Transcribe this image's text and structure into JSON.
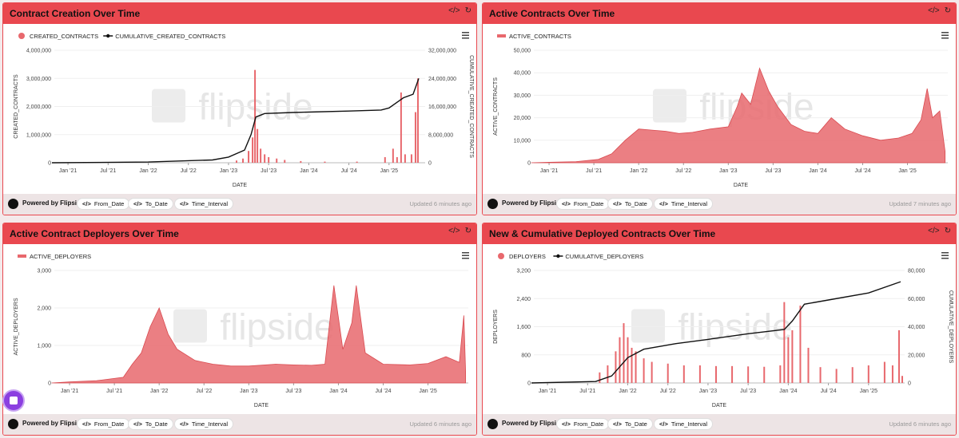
{
  "panels": [
    {
      "title": "Contract Creation Over Time",
      "footer": {
        "powered": "Powered by Flipside",
        "chips": [
          "From_Date",
          "To_Date",
          "Time_Interval"
        ],
        "updated": "Updated 6 minutes ago"
      }
    },
    {
      "title": "Active Contracts Over Time",
      "footer": {
        "powered": "Powered by Flipside",
        "chips": [
          "From_Date",
          "To_Date",
          "Time_Interval"
        ],
        "updated": "Updated 7 minutes ago"
      }
    },
    {
      "title": "Active Contract Deployers Over Time",
      "footer": {
        "powered": "Powered by Flipside",
        "chips": [
          "From_Date",
          "To_Date",
          "Time_Interval"
        ],
        "updated": "Updated 6 minutes ago"
      }
    },
    {
      "title": "New & Cumulative Deployed Contracts Over Time",
      "footer": {
        "powered": "Powered by Flipside",
        "chips": [
          "From_Date",
          "To_Date",
          "Time_Interval"
        ],
        "updated": "Updated 6 minutes ago"
      }
    }
  ],
  "icons": {
    "code": "code-icon",
    "refresh": "refresh-icon",
    "menu": "hamburger-menu-icon"
  },
  "colors": {
    "accent": "#e9484f",
    "series": "#e8686d",
    "line": "#111111"
  },
  "watermark": "flipside",
  "chart_data": [
    {
      "type": "bar",
      "xlabel": "DATE",
      "ylabel": "CREATED_CONTRACTS",
      "y2label": "CUMULATIVE_CREATED_CONTRACTS",
      "ylim": [
        0,
        4000000
      ],
      "y2lim": [
        0,
        32000000
      ],
      "yticks": [
        "0",
        "1,000,000",
        "2,000,000",
        "3,000,000",
        "4,000,000"
      ],
      "y2ticks": [
        "0",
        "8,000,000",
        "16,000,000",
        "24,000,000",
        "32,000,000"
      ],
      "xticks": [
        "Jan '21",
        "Jul '21",
        "Jan '22",
        "Jul '22",
        "Jan '23",
        "Jul '23",
        "Jan '24",
        "Jul '24",
        "Jan '25"
      ],
      "series": [
        {
          "name": "CREATED_CONTRACTS",
          "kind": "bar",
          "points": [
            [
              2023.1,
              80000
            ],
            [
              2023.18,
              150000
            ],
            [
              2023.25,
              420000
            ],
            [
              2023.3,
              900000
            ],
            [
              2023.33,
              3300000
            ],
            [
              2023.36,
              1200000
            ],
            [
              2023.4,
              500000
            ],
            [
              2023.45,
              300000
            ],
            [
              2023.5,
              200000
            ],
            [
              2023.6,
              150000
            ],
            [
              2023.7,
              100000
            ],
            [
              2023.9,
              60000
            ],
            [
              2024.2,
              40000
            ],
            [
              2024.6,
              40000
            ],
            [
              2024.95,
              200000
            ],
            [
              2025.05,
              500000
            ],
            [
              2025.1,
              200000
            ],
            [
              2025.15,
              2500000
            ],
            [
              2025.2,
              300000
            ],
            [
              2025.28,
              300000
            ],
            [
              2025.33,
              1800000
            ],
            [
              2025.36,
              3000000
            ]
          ]
        },
        {
          "name": "CUMULATIVE_CREATED_CONTRACTS",
          "kind": "line",
          "points": [
            [
              2020.8,
              0
            ],
            [
              2022.0,
              200000
            ],
            [
              2022.8,
              800000
            ],
            [
              2023.0,
              1600000
            ],
            [
              2023.2,
              3600000
            ],
            [
              2023.28,
              8000000
            ],
            [
              2023.34,
              13000000
            ],
            [
              2023.45,
              14000000
            ],
            [
              2023.8,
              14300000
            ],
            [
              2024.5,
              14700000
            ],
            [
              2024.9,
              15000000
            ],
            [
              2025.0,
              15600000
            ],
            [
              2025.18,
              18500000
            ],
            [
              2025.3,
              19500000
            ],
            [
              2025.37,
              24000000
            ]
          ]
        }
      ]
    },
    {
      "type": "area",
      "xlabel": "DATE",
      "ylabel": "ACTIVE_CONTRACTS",
      "ylim": [
        0,
        50000
      ],
      "yticks": [
        "0",
        "10,000",
        "20,000",
        "30,000",
        "40,000",
        "50,000"
      ],
      "xticks": [
        "Jan '21",
        "Jul '21",
        "Jan '22",
        "Jul '22",
        "Jan '23",
        "Jul '23",
        "Jan '24",
        "Jul '24",
        "Jan '25"
      ],
      "series": [
        {
          "name": "ACTIVE_CONTRACTS",
          "points": [
            [
              2020.8,
              0
            ],
            [
              2021.0,
              200
            ],
            [
              2021.3,
              500
            ],
            [
              2021.55,
              1500
            ],
            [
              2021.7,
              4000
            ],
            [
              2021.85,
              10000
            ],
            [
              2022.0,
              15000
            ],
            [
              2022.15,
              14500
            ],
            [
              2022.3,
              14000
            ],
            [
              2022.45,
              13000
            ],
            [
              2022.6,
              13500
            ],
            [
              2022.8,
              15000
            ],
            [
              2023.0,
              16000
            ],
            [
              2023.1,
              25000
            ],
            [
              2023.15,
              31000
            ],
            [
              2023.25,
              26000
            ],
            [
              2023.35,
              42000
            ],
            [
              2023.45,
              32000
            ],
            [
              2023.55,
              25000
            ],
            [
              2023.7,
              17000
            ],
            [
              2023.85,
              14000
            ],
            [
              2024.0,
              13000
            ],
            [
              2024.15,
              20000
            ],
            [
              2024.3,
              15000
            ],
            [
              2024.5,
              12000
            ],
            [
              2024.7,
              10000
            ],
            [
              2024.9,
              11000
            ],
            [
              2025.05,
              13000
            ],
            [
              2025.15,
              19000
            ],
            [
              2025.22,
              33000
            ],
            [
              2025.28,
              20000
            ],
            [
              2025.36,
              23000
            ],
            [
              2025.42,
              5000
            ]
          ]
        }
      ]
    },
    {
      "type": "area",
      "xlabel": "DATE",
      "ylabel": "ACTIVE_DEPLOYERS",
      "ylim": [
        0,
        3000
      ],
      "yticks": [
        "0",
        "1,000",
        "2,000",
        "3,000"
      ],
      "xticks": [
        "Jan '21",
        "Jul '21",
        "Jan '22",
        "Jul '22",
        "Jan '23",
        "Jul '23",
        "Jan '24",
        "Jul '24",
        "Jan '25"
      ],
      "series": [
        {
          "name": "ACTIVE_DEPLOYERS",
          "points": [
            [
              2020.8,
              0
            ],
            [
              2021.0,
              30
            ],
            [
              2021.3,
              60
            ],
            [
              2021.6,
              150
            ],
            [
              2021.7,
              500
            ],
            [
              2021.8,
              800
            ],
            [
              2021.9,
              1500
            ],
            [
              2022.0,
              2000
            ],
            [
              2022.1,
              1300
            ],
            [
              2022.2,
              900
            ],
            [
              2022.4,
              600
            ],
            [
              2022.6,
              500
            ],
            [
              2022.8,
              450
            ],
            [
              2023.0,
              450
            ],
            [
              2023.3,
              500
            ],
            [
              2023.5,
              480
            ],
            [
              2023.7,
              470
            ],
            [
              2023.85,
              500
            ],
            [
              2023.95,
              2600
            ],
            [
              2024.05,
              900
            ],
            [
              2024.15,
              1600
            ],
            [
              2024.2,
              2600
            ],
            [
              2024.3,
              800
            ],
            [
              2024.5,
              500
            ],
            [
              2024.8,
              480
            ],
            [
              2025.0,
              520
            ],
            [
              2025.2,
              700
            ],
            [
              2025.35,
              550
            ],
            [
              2025.4,
              1800
            ],
            [
              2025.42,
              300
            ]
          ]
        }
      ]
    },
    {
      "type": "bar",
      "xlabel": "DATE",
      "ylabel": "DEPLOYERS",
      "y2label": "CUMULATIVE_DEPLOYERS",
      "ylim": [
        0,
        3200
      ],
      "y2lim": [
        0,
        80000
      ],
      "yticks": [
        "0",
        "800",
        "1,600",
        "2,400",
        "3,200"
      ],
      "y2ticks": [
        "0",
        "20,000",
        "40,000",
        "60,000",
        "80,000"
      ],
      "xticks": [
        "Jan '21",
        "Jul '21",
        "Jan '22",
        "Jul '22",
        "Jan '23",
        "Jul '23",
        "Jan '24",
        "Jul '24",
        "Jan '25"
      ],
      "series": [
        {
          "name": "DEPLOYERS",
          "kind": "bar",
          "points": [
            [
              2021.65,
              300
            ],
            [
              2021.75,
              500
            ],
            [
              2021.85,
              900
            ],
            [
              2021.9,
              1300
            ],
            [
              2021.95,
              1700
            ],
            [
              2022.0,
              1300
            ],
            [
              2022.05,
              1000
            ],
            [
              2022.1,
              900
            ],
            [
              2022.2,
              700
            ],
            [
              2022.3,
              600
            ],
            [
              2022.5,
              550
            ],
            [
              2022.7,
              500
            ],
            [
              2022.9,
              500
            ],
            [
              2023.1,
              480
            ],
            [
              2023.3,
              480
            ],
            [
              2023.5,
              470
            ],
            [
              2023.7,
              460
            ],
            [
              2023.9,
              500
            ],
            [
              2023.95,
              2300
            ],
            [
              2024.0,
              1300
            ],
            [
              2024.05,
              1500
            ],
            [
              2024.15,
              2200
            ],
            [
              2024.25,
              1000
            ],
            [
              2024.4,
              450
            ],
            [
              2024.6,
              400
            ],
            [
              2024.8,
              450
            ],
            [
              2025.0,
              500
            ],
            [
              2025.2,
              600
            ],
            [
              2025.3,
              500
            ],
            [
              2025.38,
              1500
            ],
            [
              2025.42,
              200
            ]
          ]
        },
        {
          "name": "CUMULATIVE_DEPLOYERS",
          "kind": "line",
          "points": [
            [
              2020.8,
              0
            ],
            [
              2021.6,
              1000
            ],
            [
              2021.8,
              5000
            ],
            [
              2022.0,
              18000
            ],
            [
              2022.2,
              24000
            ],
            [
              2022.6,
              28000
            ],
            [
              2023.0,
              31000
            ],
            [
              2023.5,
              35000
            ],
            [
              2023.95,
              38000
            ],
            [
              2024.05,
              44000
            ],
            [
              2024.2,
              56000
            ],
            [
              2024.5,
              59000
            ],
            [
              2025.0,
              64000
            ],
            [
              2025.4,
              72000
            ]
          ]
        }
      ]
    }
  ]
}
